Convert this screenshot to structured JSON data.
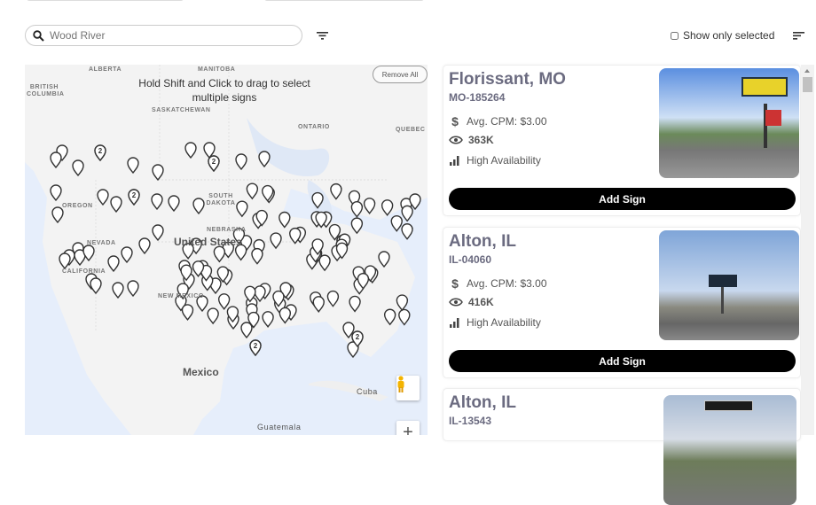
{
  "search": {
    "value": "",
    "placeholder": "Wood River",
    "icon": "search-icon"
  },
  "toolbar": {
    "filter_icon": "filter-icon",
    "show_only_selected": "Show only selected",
    "show_only_selected_checked": false,
    "sort_icon": "sort-icon"
  },
  "map": {
    "hint": "Hold Shift and Click to drag to select multiple signs",
    "remove_all": "Remove All",
    "labels": {
      "alberta": "ALBERTA",
      "manitoba": "MANITOBA",
      "british_columbia": "BRITISH COLUMBIA",
      "saskatchewan": "SASKATCHEWAN",
      "ontario": "ONTARIO",
      "quebec": "QUEBEC",
      "south_dakota": "SOUTH DAKOTA",
      "oregon": "OREGON",
      "nebraska": "NEBRASKA",
      "nevada": "NEVADA",
      "california": "CALIFORNIA",
      "united_states": "United States",
      "new_mexico": "NEW MEXICO",
      "mexico": "Mexico",
      "cuba": "Cuba",
      "guatemala": "Guatemala"
    },
    "cluster_label": "2"
  },
  "cards": [
    {
      "title": "Florissant, MO",
      "id": "MO-185264",
      "cpm": "Avg. CPM: $3.00",
      "impressions": "363K",
      "availability": "High Availability",
      "button": "Add Sign"
    },
    {
      "title": "Alton, IL",
      "id": "IL-04060",
      "cpm": "Avg. CPM: $3.00",
      "impressions": "416K",
      "availability": "High Availability",
      "button": "Add Sign"
    },
    {
      "title": "Alton, IL",
      "id": "IL-13543"
    }
  ]
}
